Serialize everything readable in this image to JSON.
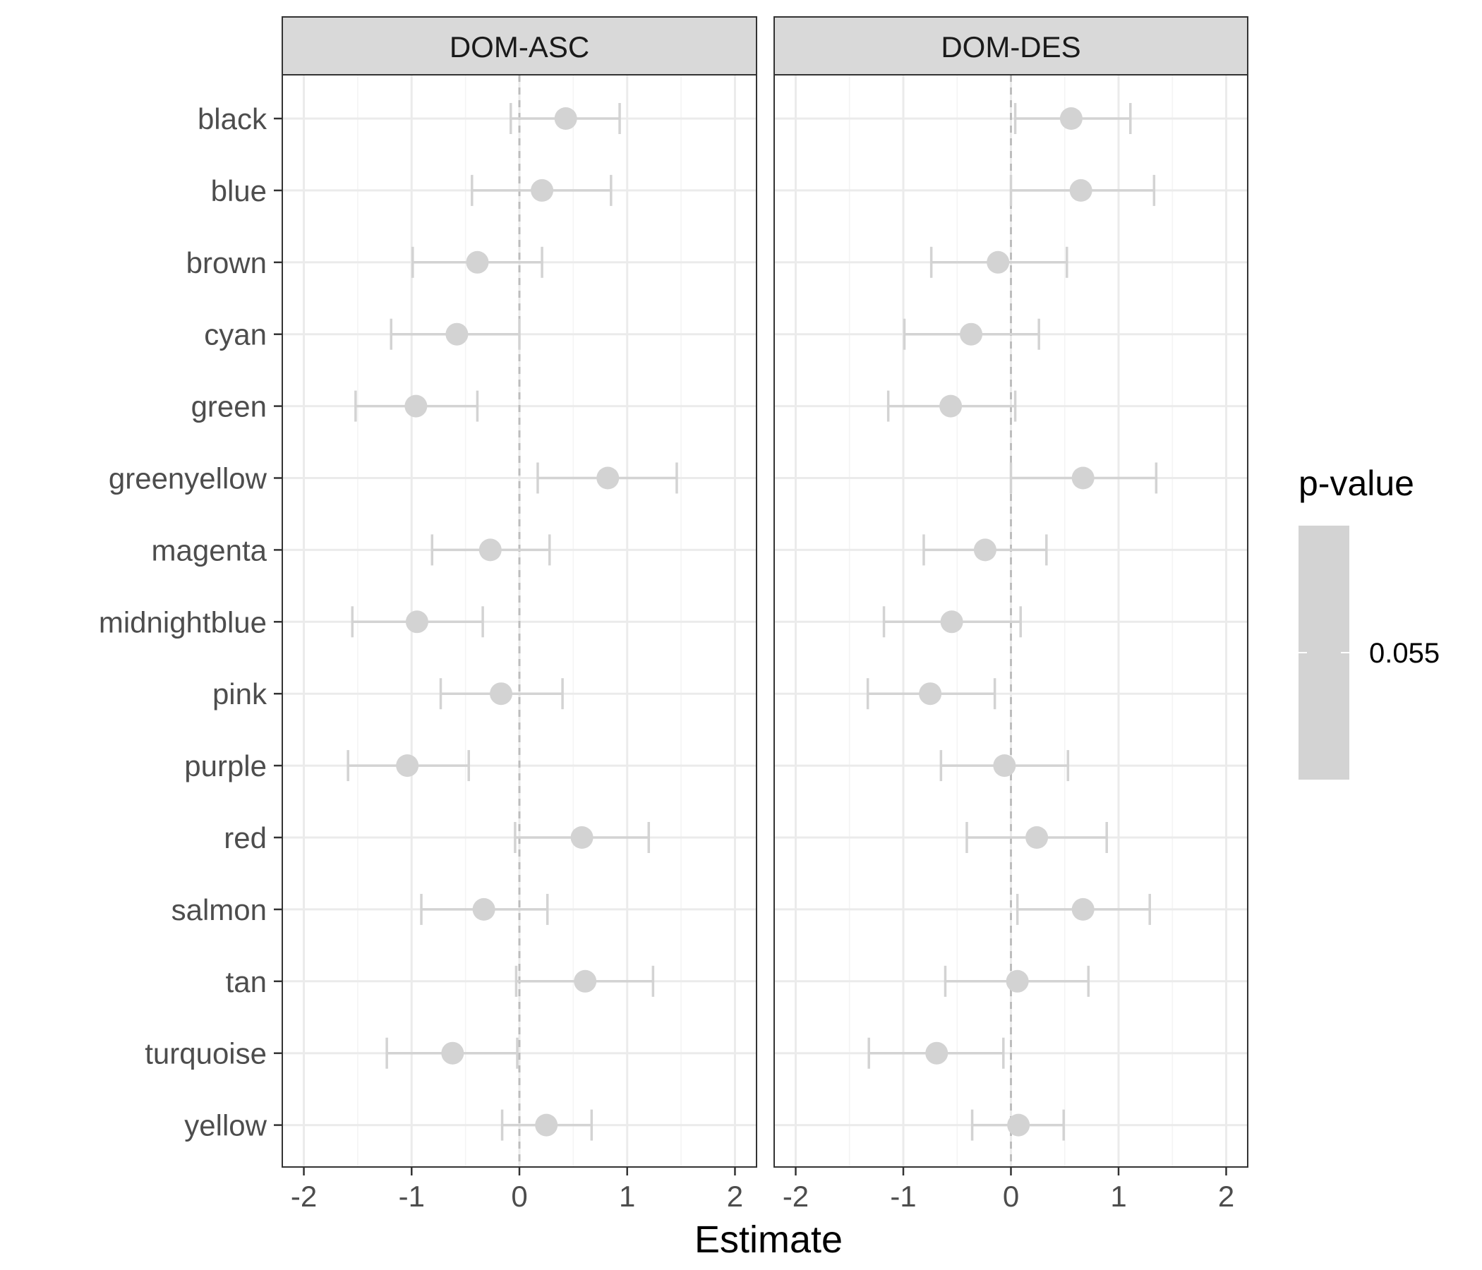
{
  "chart_data": {
    "type": "scatter",
    "subtype": "forest-plot-with-error-bars",
    "title": "",
    "xlabel": "Estimate",
    "ylabel": "",
    "xlim": [
      -2.2,
      2.2
    ],
    "xticks": [
      -2,
      -1,
      0,
      1,
      2
    ],
    "xtick_labels": [
      "-2",
      "-1",
      "0",
      "1",
      "2"
    ],
    "reference_line_x": 0,
    "grid": true,
    "point_color": "#d3d3d3",
    "categories": [
      "black",
      "blue",
      "brown",
      "cyan",
      "green",
      "greenyellow",
      "magenta",
      "midnightblue",
      "pink",
      "purple",
      "red",
      "salmon",
      "tan",
      "turquoise",
      "yellow"
    ],
    "panels": [
      {
        "name": "DOM-ASC",
        "estimate": [
          0.43,
          0.21,
          -0.39,
          -0.58,
          -0.96,
          0.82,
          -0.27,
          -0.95,
          -0.17,
          -1.04,
          0.58,
          -0.33,
          0.61,
          -0.62,
          0.25
        ],
        "lower": [
          -0.08,
          -0.44,
          -0.99,
          -1.19,
          -1.52,
          0.17,
          -0.81,
          -1.55,
          -0.73,
          -1.59,
          -0.04,
          -0.91,
          -0.03,
          -1.23,
          -0.16
        ],
        "upper": [
          0.93,
          0.85,
          0.21,
          0.0,
          -0.39,
          1.46,
          0.28,
          -0.34,
          0.4,
          -0.47,
          1.2,
          0.26,
          1.24,
          -0.02,
          0.67
        ]
      },
      {
        "name": "DOM-DES",
        "estimate": [
          0.56,
          0.65,
          -0.12,
          -0.37,
          -0.56,
          0.67,
          -0.24,
          -0.55,
          -0.75,
          -0.06,
          0.24,
          0.67,
          0.06,
          -0.69,
          0.07
        ],
        "lower": [
          0.04,
          0.0,
          -0.74,
          -0.99,
          -1.14,
          0.0,
          -0.81,
          -1.18,
          -1.33,
          -0.65,
          -0.41,
          0.06,
          -0.61,
          -1.32,
          -0.36
        ],
        "upper": [
          1.11,
          1.33,
          0.52,
          0.26,
          0.04,
          1.35,
          0.33,
          0.09,
          -0.15,
          0.53,
          0.89,
          1.29,
          0.72,
          -0.07,
          0.49
        ]
      }
    ],
    "legend": {
      "title": "p-value",
      "label": "0.055",
      "placement": "right",
      "color": "#d3d3d3"
    }
  }
}
